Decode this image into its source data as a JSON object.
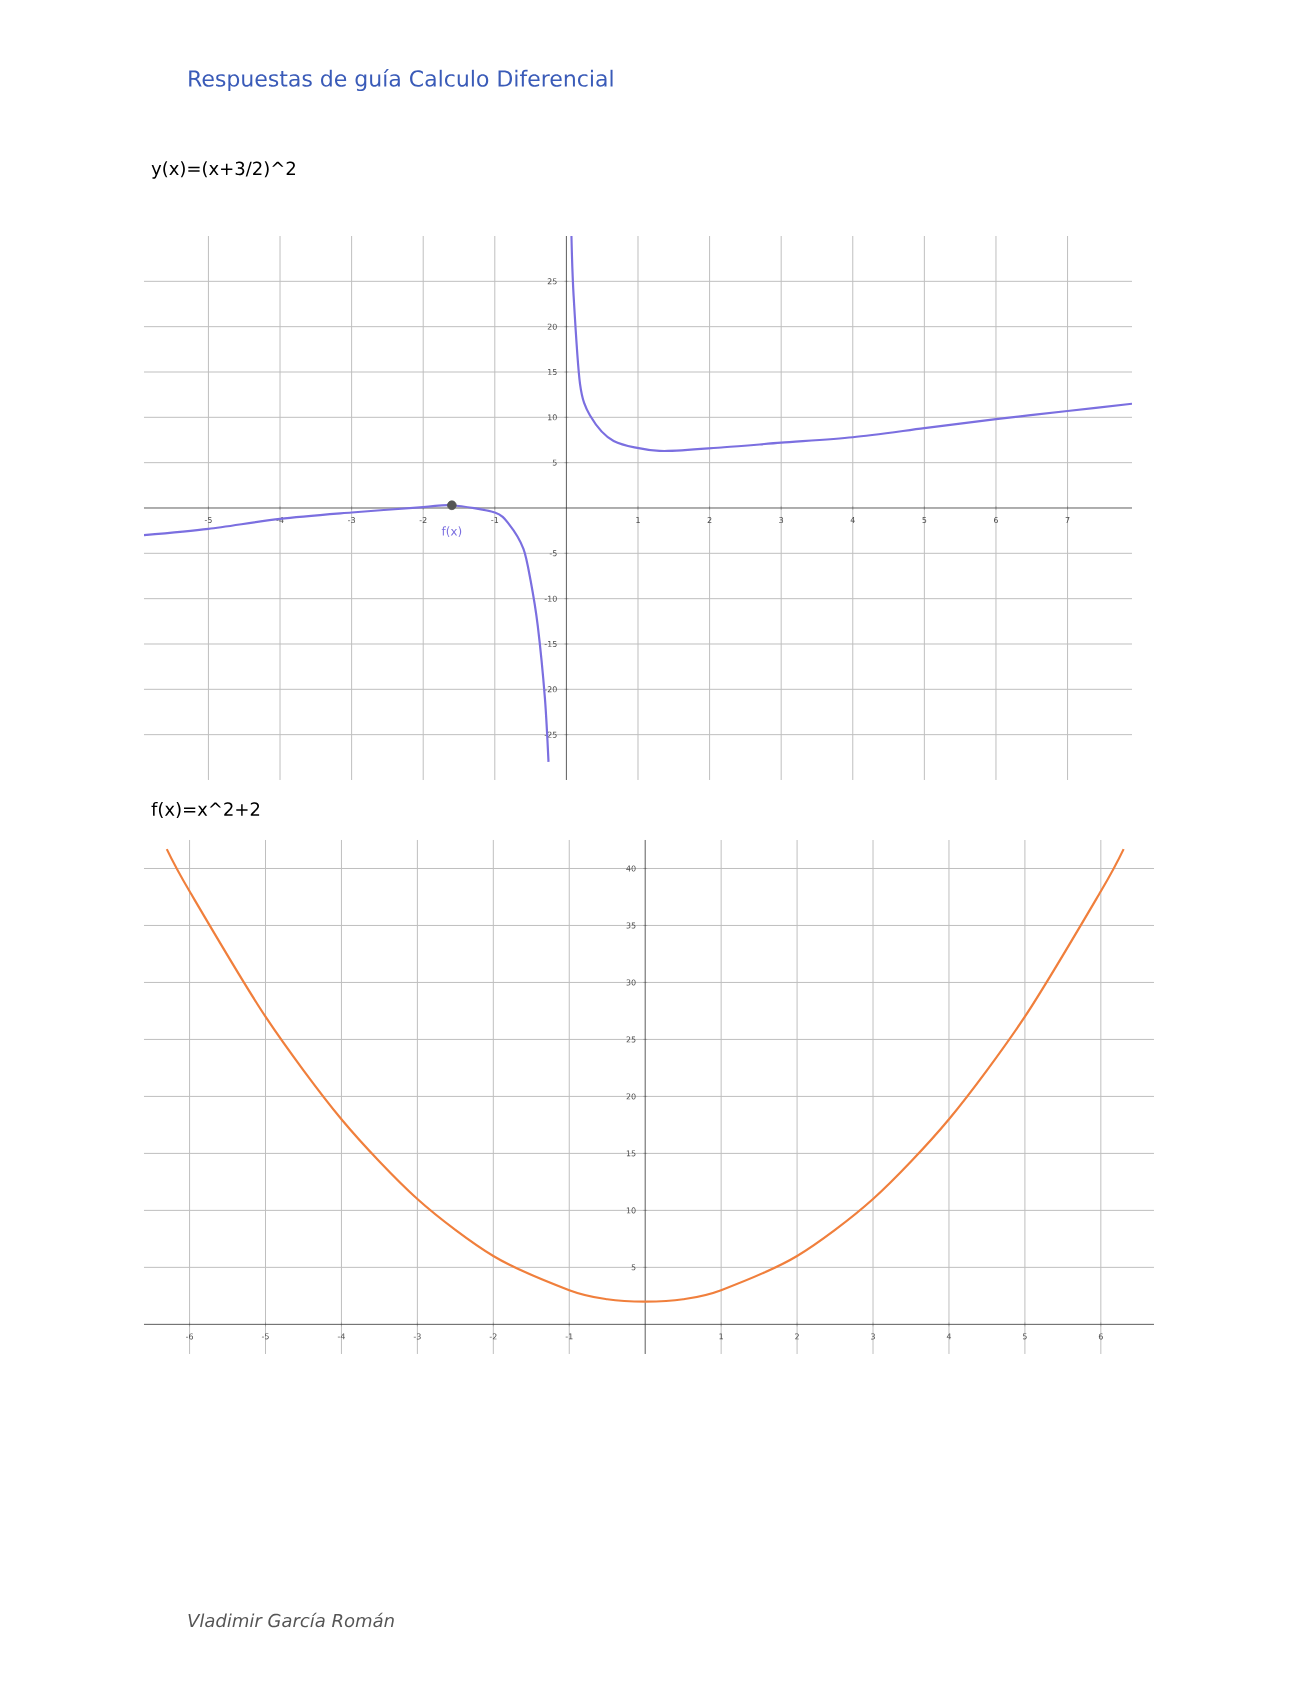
{
  "chart_data": [
    {
      "type": "line",
      "title": "y(x)=(x+3/2)^2",
      "xlim": [
        -5.9,
        7.9
      ],
      "ylim": [
        -30,
        30
      ],
      "xticks": [
        -5,
        -4,
        -3,
        -2,
        -1,
        1,
        2,
        3,
        4,
        5,
        6,
        7
      ],
      "yticks": [
        -25,
        -20,
        -15,
        -10,
        -5,
        {
          "value": 0,
          "label": null
        },
        5,
        10,
        15,
        20,
        25
      ],
      "grid": true,
      "series": [
        {
          "name": "f(x)",
          "color": "#7b6fe0",
          "x": [
            -5.9,
            -5,
            -4,
            -3,
            -2,
            -1.6,
            -1,
            -0.8,
            -0.6,
            -0.5,
            -0.4,
            -0.3,
            -0.25
          ],
          "values": [
            -3,
            -2.3,
            -1.2,
            -0.5,
            0.1,
            0.3,
            -0.5,
            -1.8,
            -4.5,
            -8,
            -13,
            -21,
            -28
          ]
        },
        {
          "color": "#7b6fe0",
          "x": [
            0.07,
            0.1,
            0.19,
            0.33,
            0.66,
            1.3,
            2.2,
            3,
            4,
            5,
            6,
            7,
            7.9
          ],
          "values": [
            30,
            23.5,
            13.7,
            10.2,
            7.4,
            6.3,
            6.7,
            7.2,
            7.8,
            8.8,
            9.8,
            10.7,
            11.5
          ]
        },
        {
          "type": "scatter",
          "color": "#555555",
          "x": [
            -1.6
          ],
          "values": [
            0.3
          ]
        }
      ],
      "annotations": [
        "Respuestas de guía Calculo Diferencial"
      ]
    },
    {
      "type": "line",
      "title": "f(x)=x^2+2",
      "xlim": [
        -6.6,
        6.7
      ],
      "ylim": [
        -2.6,
        42.5
      ],
      "xticks": [
        -6,
        -5,
        -4,
        -3,
        -2,
        -1,
        1,
        2,
        3,
        4,
        5,
        6
      ],
      "yticks": [
        5,
        10,
        15,
        20,
        25,
        30,
        35,
        40
      ],
      "grid": true,
      "series": [
        {
          "color": "#f07f3c",
          "x": [
            -6.3,
            -6,
            -5,
            -4,
            -3,
            -2,
            -1,
            -0.5,
            0,
            0.5,
            1,
            2,
            3,
            4,
            5,
            6,
            6.3
          ],
          "values": [
            41.7,
            38,
            27,
            18,
            11,
            6,
            3,
            2.2,
            2,
            2.2,
            3,
            6,
            11,
            18,
            27,
            38,
            41.7
          ]
        }
      ],
      "annotations": [
        "Vladimir García Román"
      ]
    }
  ]
}
